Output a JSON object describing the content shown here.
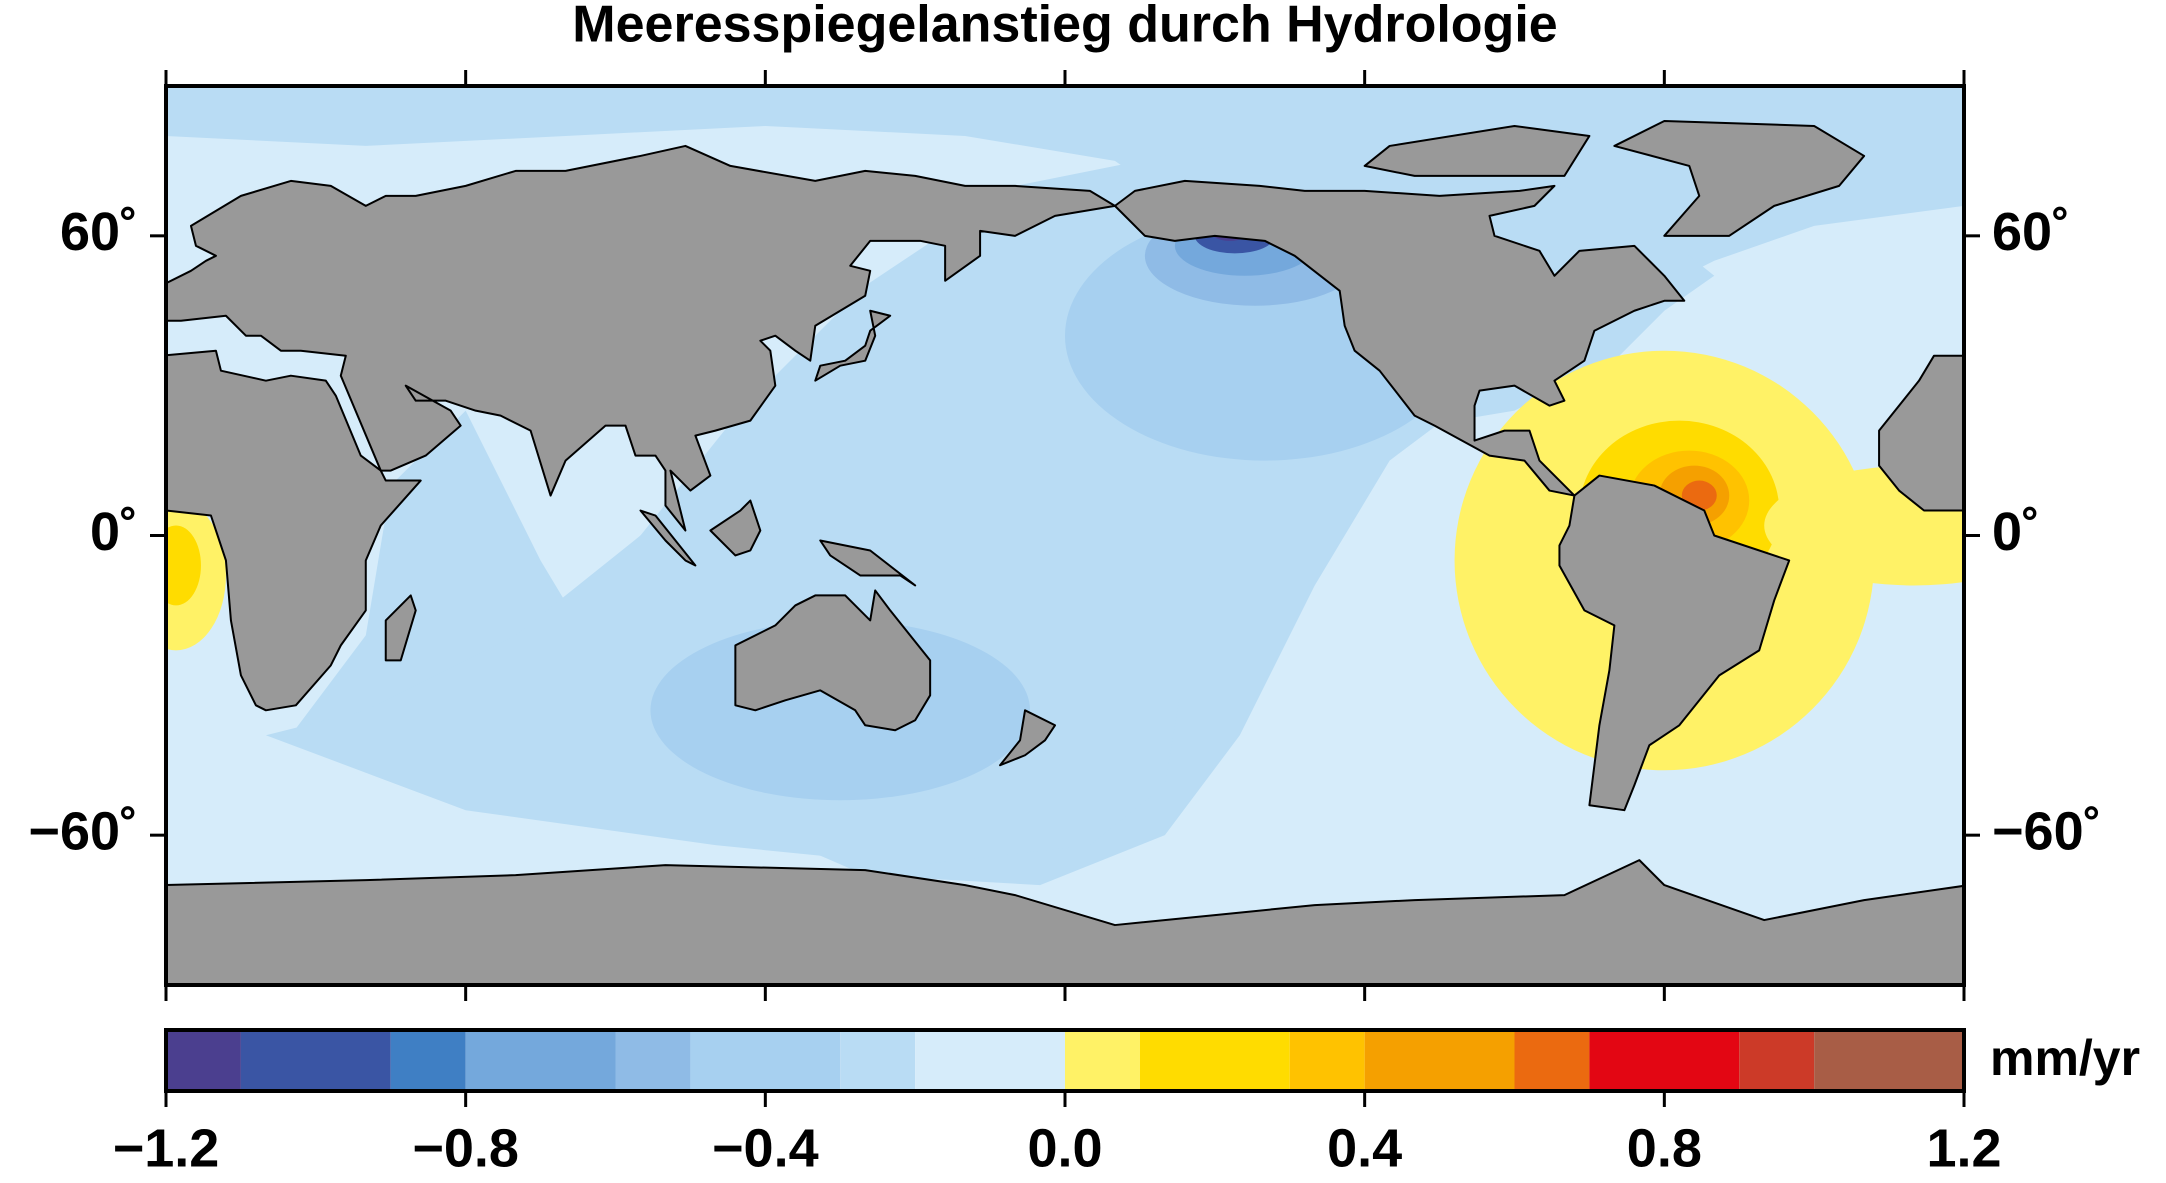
{
  "title": "Meeresspiegelanstieg durch Hydrologie",
  "map": {
    "xlim": [
      0,
      360
    ],
    "xticks": [
      0,
      60,
      120,
      180,
      240,
      300,
      360
    ],
    "ylim": [
      -90,
      90
    ],
    "yticks": [
      {
        "value": 60,
        "label": "60˚"
      },
      {
        "value": 0,
        "label": "0˚"
      },
      {
        "value": -60,
        "label": "−60˚"
      }
    ]
  },
  "colorbar": {
    "unit": "mm/yr",
    "range": [
      -1.2,
      1.2
    ],
    "ticks": [
      {
        "value": -1.2,
        "label": "−1.2"
      },
      {
        "value": -0.8,
        "label": "−0.8"
      },
      {
        "value": -0.4,
        "label": "−0.4"
      },
      {
        "value": 0,
        "label": "0.0"
      },
      {
        "value": 0.4,
        "label": "0.4"
      },
      {
        "value": 0.8,
        "label": "0.8"
      },
      {
        "value": 1.2,
        "label": "1.2"
      }
    ],
    "segments": [
      {
        "from": -1.2,
        "to": -1.1,
        "color": "#4b3f8f"
      },
      {
        "from": -1.1,
        "to": -0.9,
        "color": "#3a55a4"
      },
      {
        "from": -0.9,
        "to": -0.8,
        "color": "#3f7fc4"
      },
      {
        "from": -0.8,
        "to": -0.6,
        "color": "#74a8dc"
      },
      {
        "from": -0.6,
        "to": -0.5,
        "color": "#8fbbe6"
      },
      {
        "from": -0.5,
        "to": -0.3,
        "color": "#a7d0f0"
      },
      {
        "from": -0.3,
        "to": -0.2,
        "color": "#b9dcf4"
      },
      {
        "from": -0.2,
        "to": 0,
        "color": "#d6ecfa"
      },
      {
        "from": 0,
        "to": 0.1,
        "color": "#fff266"
      },
      {
        "from": 0.1,
        "to": 0.3,
        "color": "#ffdc00"
      },
      {
        "from": 0.3,
        "to": 0.4,
        "color": "#ffc200"
      },
      {
        "from": 0.4,
        "to": 0.6,
        "color": "#f5a000"
      },
      {
        "from": 0.6,
        "to": 0.7,
        "color": "#eb6a10"
      },
      {
        "from": 0.7,
        "to": 0.9,
        "color": "#e30613"
      },
      {
        "from": 0.9,
        "to": 1.0,
        "color": "#cc3a28"
      },
      {
        "from": 1.0,
        "to": 1.2,
        "color": "#a85d46"
      }
    ]
  }
}
